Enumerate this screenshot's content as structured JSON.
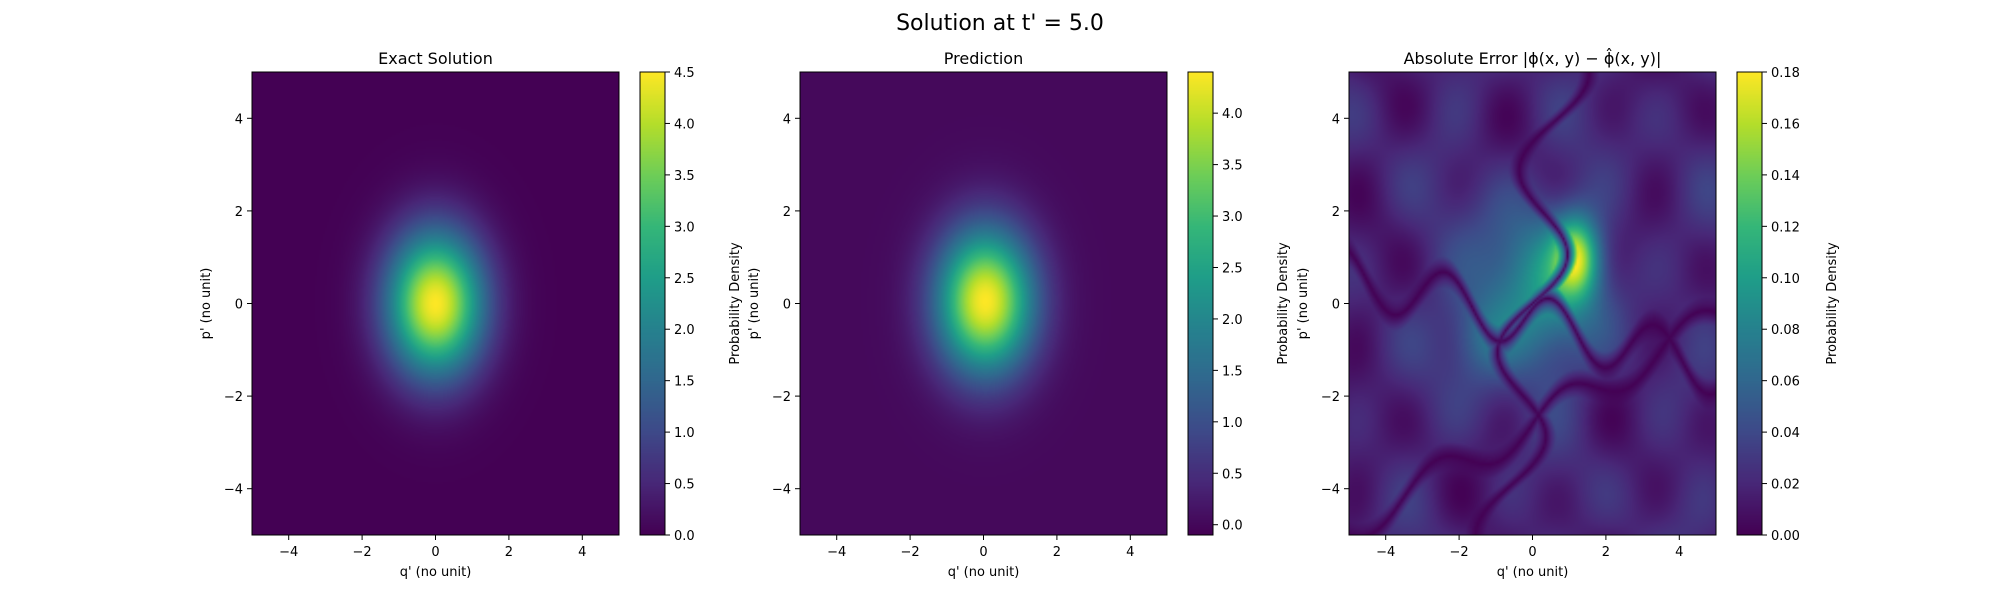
{
  "figure_title": "Solution at t' = 5.0",
  "chart_data": [
    {
      "type": "heatmap",
      "title": "Exact Solution",
      "xlabel": "q' (no unit)",
      "ylabel": "p' (no unit)",
      "xlim": [
        -5,
        5
      ],
      "ylim": [
        -5,
        5
      ],
      "xticks": [
        -4,
        -2,
        0,
        2,
        4
      ],
      "yticks": [
        -4,
        -2,
        0,
        2,
        4
      ],
      "colormap": "viridis",
      "colorbar_label": "Probability Density",
      "colorbar_range": [
        0.0,
        4.5
      ],
      "colorbar_ticks": [
        "0.0",
        "0.5",
        "1.0",
        "1.5",
        "2.0",
        "2.5",
        "3.0",
        "3.5",
        "4.0",
        "4.5"
      ],
      "field": {
        "kind": "gaussian",
        "peak": 4.5,
        "center": [
          0.0,
          0.0
        ],
        "sigma": [
          0.92,
          1.08
        ]
      }
    },
    {
      "type": "heatmap",
      "title": "Prediction",
      "xlabel": "q' (no unit)",
      "ylabel": "p' (no unit)",
      "xlim": [
        -5,
        5
      ],
      "ylim": [
        -5,
        5
      ],
      "xticks": [
        -4,
        -2,
        0,
        2,
        4
      ],
      "yticks": [
        -4,
        -2,
        0,
        2,
        4
      ],
      "colormap": "viridis",
      "colorbar_label": "Probability Density",
      "colorbar_range": [
        -0.1,
        4.4
      ],
      "colorbar_ticks": [
        "0.0",
        "0.5",
        "1.0",
        "1.5",
        "2.0",
        "2.5",
        "3.0",
        "3.5",
        "4.0"
      ],
      "field": {
        "kind": "gaussian",
        "peak": 4.4,
        "center": [
          0.05,
          0.05
        ],
        "sigma": [
          0.92,
          1.08
        ]
      }
    },
    {
      "type": "heatmap",
      "title": "Absolute Error |ϕ(x, y) − ϕ̂(x, y)|",
      "xlabel": "q' (no unit)",
      "ylabel": "p' (no unit)",
      "xlim": [
        -5,
        5
      ],
      "ylim": [
        -5,
        5
      ],
      "xticks": [
        -4,
        -2,
        0,
        2,
        4
      ],
      "yticks": [
        -4,
        -2,
        0,
        2,
        4
      ],
      "colormap": "viridis",
      "colorbar_label": "Probability Density",
      "colorbar_range": [
        0.0,
        0.18
      ],
      "colorbar_ticks": [
        "0.00",
        "0.02",
        "0.04",
        "0.06",
        "0.08",
        "0.10",
        "0.12",
        "0.14",
        "0.16",
        "0.18"
      ],
      "field": {
        "kind": "error",
        "peak": 0.18,
        "hotspot": [
          1.2,
          1.0
        ]
      }
    }
  ]
}
